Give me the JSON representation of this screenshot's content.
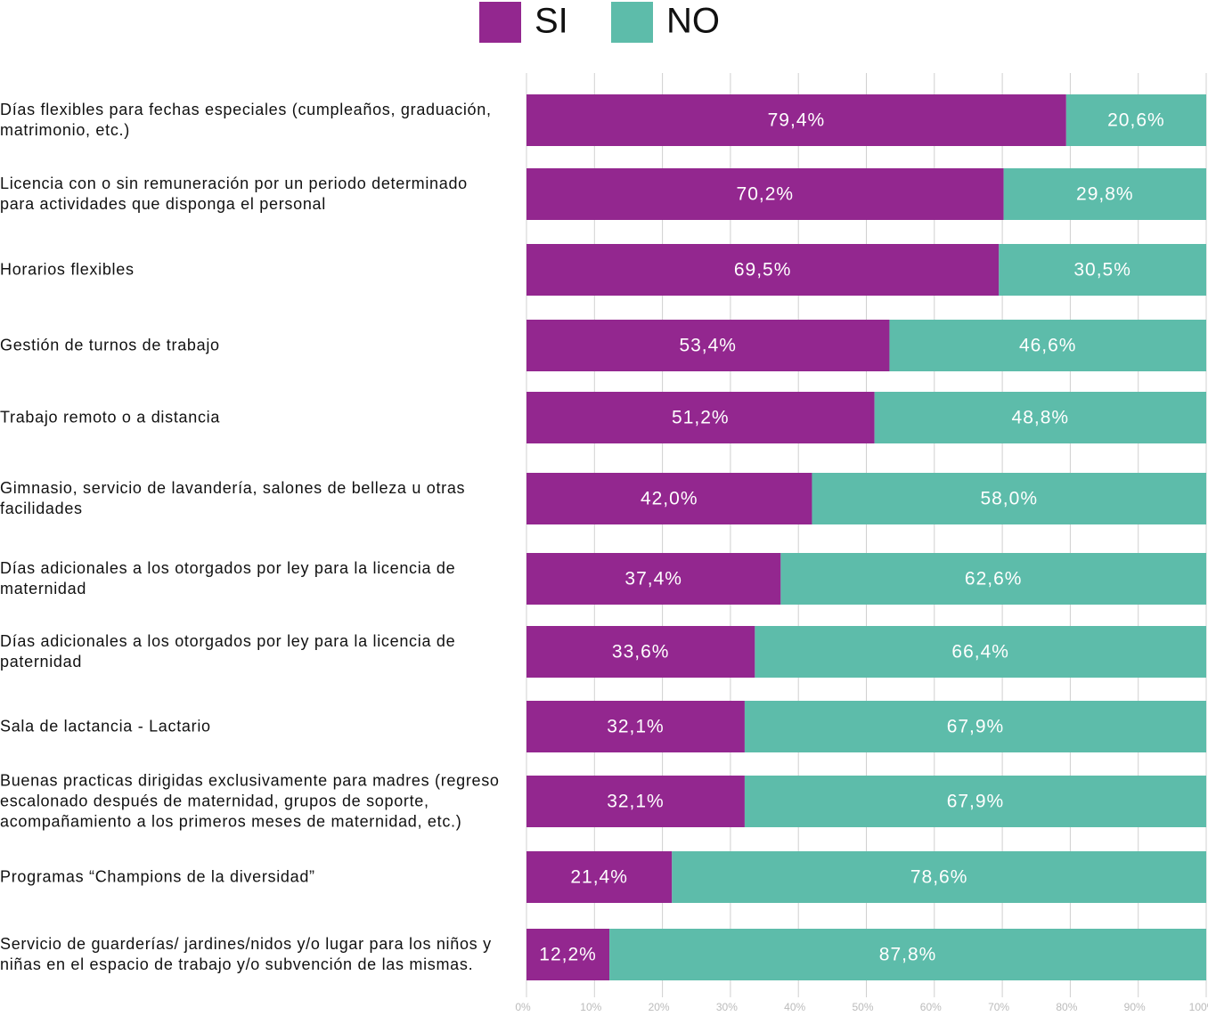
{
  "chart_data": {
    "type": "stacked_barh",
    "categories": [
      "Días flexibles para fechas especiales (cumpleaños, graduación, matrimonio, etc.)",
      "Licencia con o sin remuneración por un periodo determinado para actividades que disponga el personal",
      "Horarios flexibles",
      "Gestión de turnos de trabajo",
      "Trabajo remoto o a distancia",
      "Gimnasio, servicio de lavandería, salones de belleza u otras facilidades",
      "Días adicionales a los otorgados por ley para la licencia de maternidad",
      "Días adicionales a los otorgados por ley para la licencia de paternidad",
      "Sala de lactancia - Lactario",
      "Buenas practicas dirigidas exclusivamente para madres (regreso escalonado después de maternidad, grupos de soporte, acompañamiento a los primeros meses de maternidad, etc.)",
      "Programas “Champions de la diversidad”",
      "Servicio de guarderías/ jardines/nidos y/o lugar para los niños y niñas en el espacio de trabajo y/o subvención de las mismas."
    ],
    "series": [
      {
        "name": "SI",
        "color": "#93278f",
        "values": [
          79.4,
          70.2,
          69.5,
          53.4,
          51.2,
          42.0,
          37.4,
          33.6,
          32.1,
          32.1,
          21.4,
          12.2
        ],
        "value_labels": [
          "79,4%",
          "70,2%",
          "69,5%",
          "53,4%",
          "51,2%",
          "42,0%",
          "37,4%",
          "33,6%",
          "32,1%",
          "32,1%",
          "21,4%",
          "12,2%"
        ]
      },
      {
        "name": "NO",
        "color": "#5dbcaa",
        "values": [
          20.6,
          29.8,
          30.5,
          46.6,
          48.8,
          58.0,
          62.6,
          66.4,
          67.9,
          67.9,
          78.6,
          87.8
        ],
        "value_labels": [
          "20,6%",
          "29,8%",
          "30,5%",
          "46,6%",
          "48,8%",
          "58,0%",
          "62,6%",
          "66,4%",
          "67,9%",
          "67,9%",
          "78,6%",
          "87,8%"
        ]
      }
    ],
    "xlim": [
      0,
      100
    ],
    "xticks": [
      {
        "value": 0,
        "label": "0%"
      },
      {
        "value": 10,
        "label": "10%"
      },
      {
        "value": 20,
        "label": "20%"
      },
      {
        "value": 30,
        "label": "30%"
      },
      {
        "value": 40,
        "label": "40%"
      },
      {
        "value": 50,
        "label": "50%"
      },
      {
        "value": 60,
        "label": "60%"
      },
      {
        "value": 70,
        "label": "70%"
      },
      {
        "value": 80,
        "label": "80%"
      },
      {
        "value": 90,
        "label": "90%"
      },
      {
        "value": 100,
        "label": "100%"
      }
    ],
    "grid": true
  }
}
